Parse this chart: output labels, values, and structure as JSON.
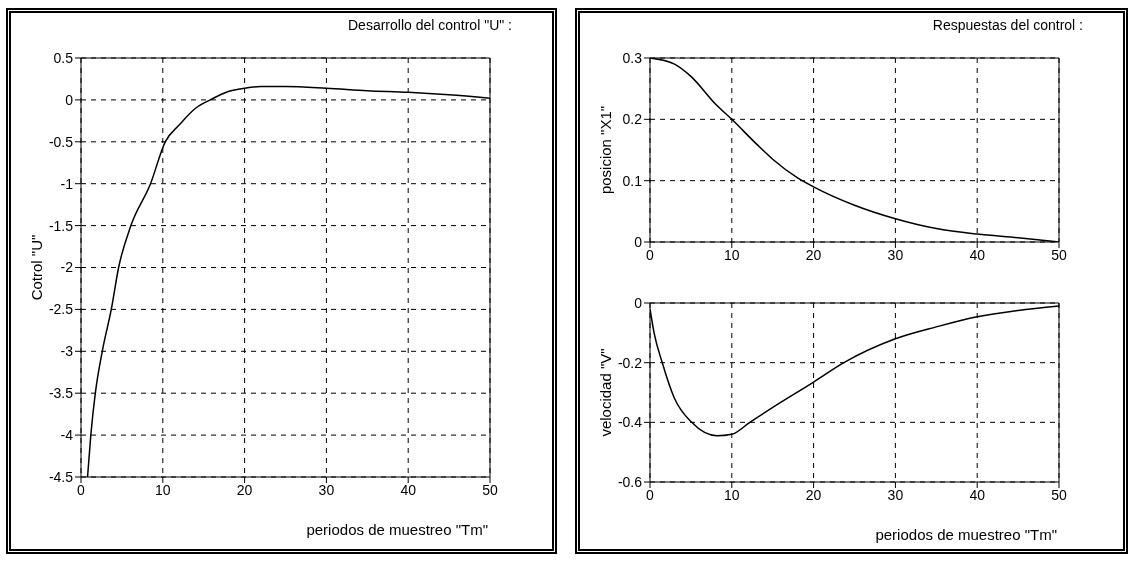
{
  "chart_data": [
    {
      "type": "line",
      "title": "Desarrollo del control \"U\" :",
      "xlabel": "periodos de muestreo \"Tm\"",
      "ylabel": "Cotrol \"U\"",
      "x": [
        0.8,
        1.2,
        1.75,
        2.6,
        3.7,
        4.6,
        6.1,
        8.5,
        10.3,
        12,
        14,
        15.8,
        18,
        20,
        22,
        25,
        30,
        35,
        40,
        45,
        50
      ],
      "values": [
        -4.5,
        -4.0,
        -3.5,
        -3,
        -2.5,
        -2,
        -1.5,
        -1,
        -0.5,
        -0.3,
        -0.1,
        0,
        0.1,
        0.14,
        0.16,
        0.16,
        0.14,
        0.11,
        0.09,
        0.06,
        0.02
      ],
      "color": "#000000",
      "xlim": [
        0,
        50
      ],
      "xticks": [
        0,
        10,
        20,
        30,
        40,
        50
      ],
      "ylim": [
        -4.5,
        0.5
      ],
      "yticks": [
        -4.5,
        -4,
        -3.5,
        -3,
        -2.5,
        -2,
        -1.5,
        -1,
        -0.5,
        0,
        0.5
      ],
      "grid": true,
      "marker": "none",
      "line_style": "solid"
    },
    {
      "type": "line",
      "title": "Respuestas del control :",
      "ylabel": "posicion \"X1\"",
      "x": [
        0,
        3,
        5,
        8,
        10,
        13,
        15,
        18,
        20,
        25,
        30,
        35,
        40,
        45,
        50
      ],
      "values": [
        0.3,
        0.29,
        0.27,
        0.225,
        0.2,
        0.16,
        0.135,
        0.105,
        0.09,
        0.06,
        0.038,
        0.022,
        0.013,
        0.007,
        0
      ],
      "color": "#000000",
      "xlim": [
        0,
        50
      ],
      "xticks": [
        0,
        10,
        20,
        30,
        40,
        50
      ],
      "ylim": [
        0,
        0.3
      ],
      "yticks": [
        0,
        0.1,
        0.2,
        0.3
      ],
      "grid": true,
      "marker": "none",
      "line_style": "solid"
    },
    {
      "type": "line",
      "xlabel": "periodos de muestreo \"Tm\"",
      "ylabel": "velocidad \"V\"",
      "x": [
        0,
        0.5,
        1.5,
        3,
        5.1,
        8.2,
        10,
        12.2,
        15,
        20,
        23.7,
        30,
        35,
        40,
        45,
        50
      ],
      "values": [
        -0.02,
        -0.1,
        -0.2,
        -0.32,
        -0.4,
        -0.445,
        -0.44,
        -0.4,
        -0.35,
        -0.265,
        -0.2,
        -0.12,
        -0.08,
        -0.046,
        -0.025,
        -0.01
      ],
      "color": "#000000",
      "xlim": [
        0,
        50
      ],
      "xticks": [
        0,
        10,
        20,
        30,
        40,
        50
      ],
      "ylim": [
        -0.6,
        0
      ],
      "yticks": [
        -0.6,
        -0.4,
        -0.2,
        0
      ],
      "grid": true,
      "marker": "none",
      "line_style": "solid"
    }
  ]
}
